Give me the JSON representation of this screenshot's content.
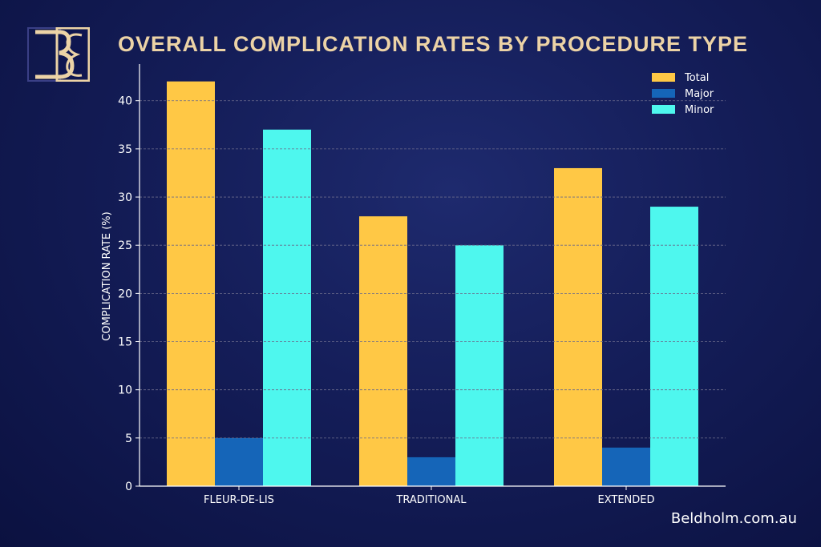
{
  "brand": {
    "logo_letters": "B&B",
    "footer": "Beldholm.com.au"
  },
  "chart_data": {
    "type": "bar",
    "title": "OVERALL COMPLICATION RATES BY PROCEDURE TYPE",
    "xlabel": "",
    "ylabel": "COMPLICATION RATE  (%)",
    "categories": [
      "FLEUR-DE-LIS",
      "TRADITIONAL",
      "EXTENDED"
    ],
    "series": [
      {
        "name": "Total",
        "color": "#ffc845",
        "values": [
          42,
          28,
          33
        ]
      },
      {
        "name": "Major",
        "color": "#1565b8",
        "values": [
          5,
          3,
          4
        ]
      },
      {
        "name": "Minor",
        "color": "#4ef7ee",
        "values": [
          37,
          25,
          29
        ]
      }
    ],
    "ylim": [
      0,
      43.8
    ],
    "yticks": [
      0,
      5,
      10,
      15,
      20,
      25,
      30,
      35,
      40
    ],
    "grid": "horizontal dashed",
    "legend": "top-right"
  }
}
